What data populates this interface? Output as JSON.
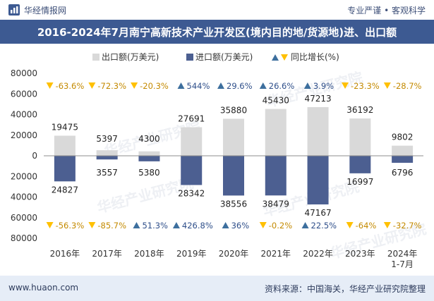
{
  "header": {
    "brand": "华经情报网",
    "slogan": "专业严谨 • 客观科学"
  },
  "footer": {
    "website": "www.huaon.com",
    "source": "资料来源：中国海关，华经产业研究院整理"
  },
  "watermark": "华经产业研究院",
  "colors": {
    "export_bar": "#d9d9d9",
    "import_bar": "#4c5f91",
    "growth_marker": "#ffc000",
    "growth_up_marker": "#3d6f9e",
    "title_bar": "#3d5a92",
    "footer_bar": "#e6edf7"
  },
  "chart_data": {
    "type": "bar",
    "title": "2016-2024年7月南宁高新技术产业开发区(境内目的地/货源地)进、出口额",
    "categories": [
      "2016年",
      "2017年",
      "2018年",
      "2019年",
      "2020年",
      "2021年",
      "2022年",
      "2023年",
      "2024年\n1-7月"
    ],
    "legend": [
      "出口额(万美元)",
      "进口额(万美元)",
      "同比增长(%)"
    ],
    "legend_position": "top",
    "ylim": [
      -80000,
      80000
    ],
    "yticks": [
      80000,
      60000,
      40000,
      20000,
      0,
      -20000,
      -40000,
      -60000,
      -80000
    ],
    "ytick_labels": [
      "80000",
      "60000",
      "40000",
      "20000",
      "0",
      "20000",
      "40000",
      "60000",
      "80000"
    ],
    "grid": false,
    "series": [
      {
        "name": "出口额(万美元)",
        "values": [
          19475,
          5397,
          4300,
          27691,
          35880,
          45430,
          47213,
          36192,
          9802
        ],
        "labels": [
          "19475",
          "5397",
          "4300",
          "27691",
          "35880",
          "45430",
          "47213",
          "36192",
          "9802"
        ],
        "growth": [
          "-63.6%",
          "-72.3%",
          "-20.3%",
          "544%",
          "29.6%",
          "26.6%",
          "3.9%",
          "-23.3%",
          "-28.7%"
        ],
        "growth_direction": [
          "down",
          "down",
          "down",
          "up",
          "up",
          "up",
          "up",
          "down",
          "down"
        ]
      },
      {
        "name": "进口额(万美元)",
        "values": [
          24827,
          3557,
          5380,
          28342,
          38556,
          38479,
          47167,
          16997,
          6796
        ],
        "labels": [
          "24827",
          "3557",
          "5380",
          "28342",
          "38556",
          "38479",
          "47167",
          "16997",
          "6796"
        ],
        "growth": [
          "-56.3%",
          "-85.7%",
          "51.3%",
          "426.8%",
          "36%",
          "-0.2%",
          "22.5%",
          "-64%",
          "-32.7%"
        ],
        "growth_direction": [
          "down",
          "down",
          "up",
          "up",
          "up",
          "down",
          "up",
          "down",
          "down"
        ]
      }
    ]
  }
}
